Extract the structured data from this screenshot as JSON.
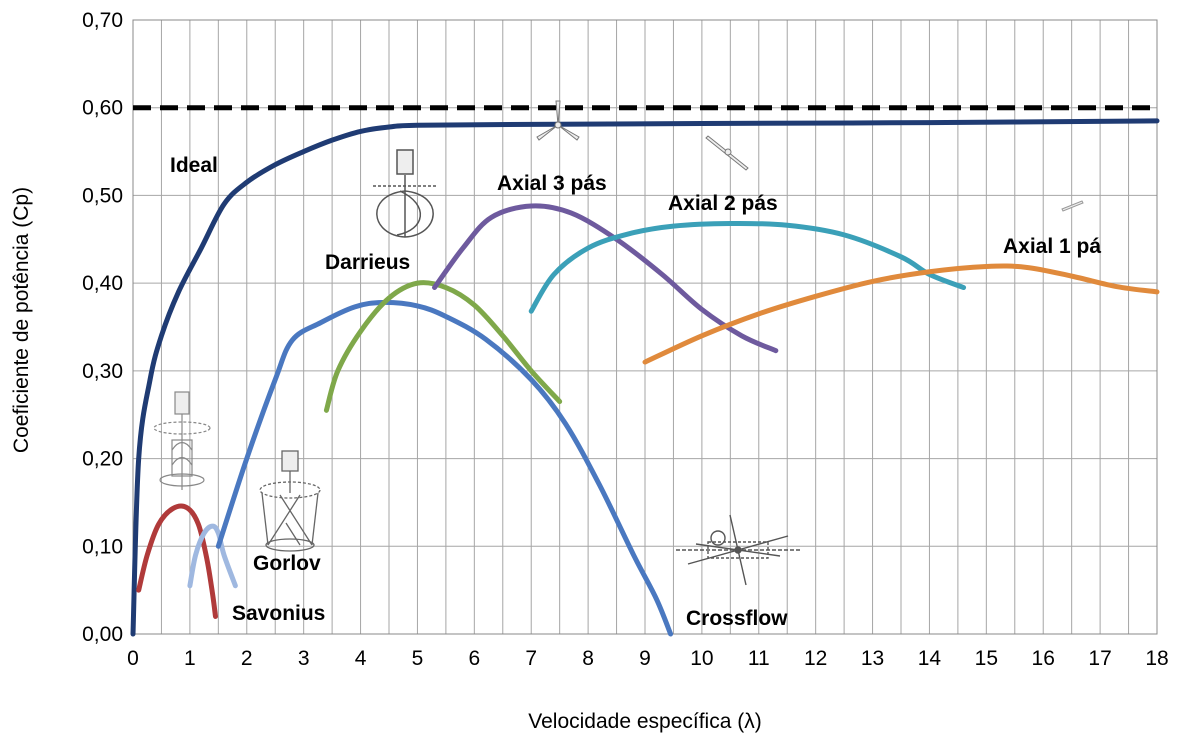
{
  "chart_data": {
    "type": "line",
    "title": "",
    "xlabel": "Velocidade específica (λ)",
    "ylabel": "Coeficiente de potência (Cp)",
    "xlim": [
      0,
      18
    ],
    "ylim": [
      0,
      0.7
    ],
    "xticks": [
      "0",
      "1",
      "2",
      "3",
      "4",
      "5",
      "6",
      "7",
      "8",
      "9",
      "10",
      "11",
      "12",
      "13",
      "14",
      "15",
      "16",
      "17",
      "18"
    ],
    "yticks": [
      "0,00",
      "0,10",
      "0,20",
      "0,30",
      "0,40",
      "0,50",
      "0,60",
      "0,70"
    ],
    "grid": true,
    "legend": "none",
    "reference_line": {
      "y": 0.6,
      "color": "#000000",
      "style": "dashed"
    },
    "series": [
      {
        "name": "Ideal",
        "color": "#1f3b73",
        "points": [
          [
            0,
            0
          ],
          [
            0.1,
            0.2
          ],
          [
            0.3,
            0.29
          ],
          [
            0.5,
            0.34
          ],
          [
            0.8,
            0.39
          ],
          [
            1.2,
            0.44
          ],
          [
            1.6,
            0.49
          ],
          [
            2.0,
            0.515
          ],
          [
            2.5,
            0.535
          ],
          [
            3.0,
            0.55
          ],
          [
            3.5,
            0.563
          ],
          [
            4.0,
            0.573
          ],
          [
            4.5,
            0.578
          ],
          [
            5.0,
            0.58
          ],
          [
            7.0,
            0.581
          ],
          [
            10,
            0.582
          ],
          [
            14,
            0.583
          ],
          [
            18,
            0.585
          ]
        ]
      },
      {
        "name": "Savonius",
        "color": "#b03a3a",
        "points": [
          [
            0.1,
            0.05
          ],
          [
            0.25,
            0.09
          ],
          [
            0.45,
            0.125
          ],
          [
            0.7,
            0.143
          ],
          [
            0.95,
            0.144
          ],
          [
            1.15,
            0.125
          ],
          [
            1.3,
            0.085
          ],
          [
            1.4,
            0.045
          ],
          [
            1.45,
            0.02
          ]
        ]
      },
      {
        "name": "",
        "color": "#9fb8e0",
        "points": [
          [
            1.0,
            0.055
          ],
          [
            1.1,
            0.09
          ],
          [
            1.25,
            0.115
          ],
          [
            1.4,
            0.123
          ],
          [
            1.5,
            0.115
          ],
          [
            1.6,
            0.09
          ],
          [
            1.8,
            0.055
          ]
        ]
      },
      {
        "name": "Gorlov",
        "color": "#4a78c0",
        "points": [
          [
            1.5,
            0.1
          ],
          [
            2.0,
            0.2
          ],
          [
            2.5,
            0.29
          ],
          [
            2.8,
            0.335
          ],
          [
            3.3,
            0.355
          ],
          [
            3.9,
            0.373
          ],
          [
            4.4,
            0.378
          ],
          [
            5.0,
            0.374
          ],
          [
            5.5,
            0.362
          ],
          [
            6.2,
            0.336
          ],
          [
            7.0,
            0.29
          ],
          [
            7.6,
            0.24
          ],
          [
            8.2,
            0.17
          ],
          [
            8.8,
            0.09
          ],
          [
            9.2,
            0.04
          ],
          [
            9.45,
            0.0
          ]
        ]
      },
      {
        "name": "Darrieus",
        "color": "#7fa84a",
        "points": [
          [
            3.4,
            0.255
          ],
          [
            3.6,
            0.3
          ],
          [
            4.0,
            0.345
          ],
          [
            4.5,
            0.383
          ],
          [
            5.0,
            0.4
          ],
          [
            5.5,
            0.395
          ],
          [
            6.0,
            0.375
          ],
          [
            6.5,
            0.34
          ],
          [
            7.0,
            0.3
          ],
          [
            7.5,
            0.265
          ]
        ]
      },
      {
        "name": "Axial 3 pás",
        "color": "#6e5a9e",
        "points": [
          [
            5.3,
            0.395
          ],
          [
            5.8,
            0.44
          ],
          [
            6.3,
            0.475
          ],
          [
            7.0,
            0.488
          ],
          [
            7.7,
            0.48
          ],
          [
            8.5,
            0.45
          ],
          [
            9.3,
            0.41
          ],
          [
            10.0,
            0.37
          ],
          [
            10.7,
            0.34
          ],
          [
            11.3,
            0.323
          ]
        ]
      },
      {
        "name": "Axial 2 pás",
        "color": "#3ba0b8",
        "points": [
          [
            7.0,
            0.368
          ],
          [
            7.4,
            0.41
          ],
          [
            8.0,
            0.44
          ],
          [
            8.7,
            0.456
          ],
          [
            9.5,
            0.465
          ],
          [
            10.5,
            0.468
          ],
          [
            11.5,
            0.466
          ],
          [
            12.5,
            0.455
          ],
          [
            13.5,
            0.43
          ],
          [
            14.0,
            0.41
          ],
          [
            14.6,
            0.395
          ]
        ]
      },
      {
        "name": "Axial 1 pá",
        "color": "#e08a3c",
        "points": [
          [
            9.0,
            0.31
          ],
          [
            10.0,
            0.34
          ],
          [
            11.0,
            0.365
          ],
          [
            12.0,
            0.385
          ],
          [
            13.0,
            0.402
          ],
          [
            14.0,
            0.413
          ],
          [
            15.0,
            0.419
          ],
          [
            15.7,
            0.418
          ],
          [
            16.5,
            0.408
          ],
          [
            17.3,
            0.396
          ],
          [
            18.0,
            0.39
          ]
        ]
      }
    ],
    "annotations": [
      "Ideal",
      "Savonius",
      "Gorlov",
      "Darrieus",
      "Axial 3 pás",
      "Axial 2 pás",
      "Axial 1 pá",
      "Crossflow"
    ],
    "illustrations": [
      "vertical-axis-turbine-icon",
      "savonius-rotor-icon",
      "gorlov-rotor-icon",
      "darrieus-rotor-icon",
      "three-blade-axial-icon",
      "two-blade-axial-icon",
      "one-blade-axial-icon",
      "crossflow-rotor-icon"
    ]
  }
}
